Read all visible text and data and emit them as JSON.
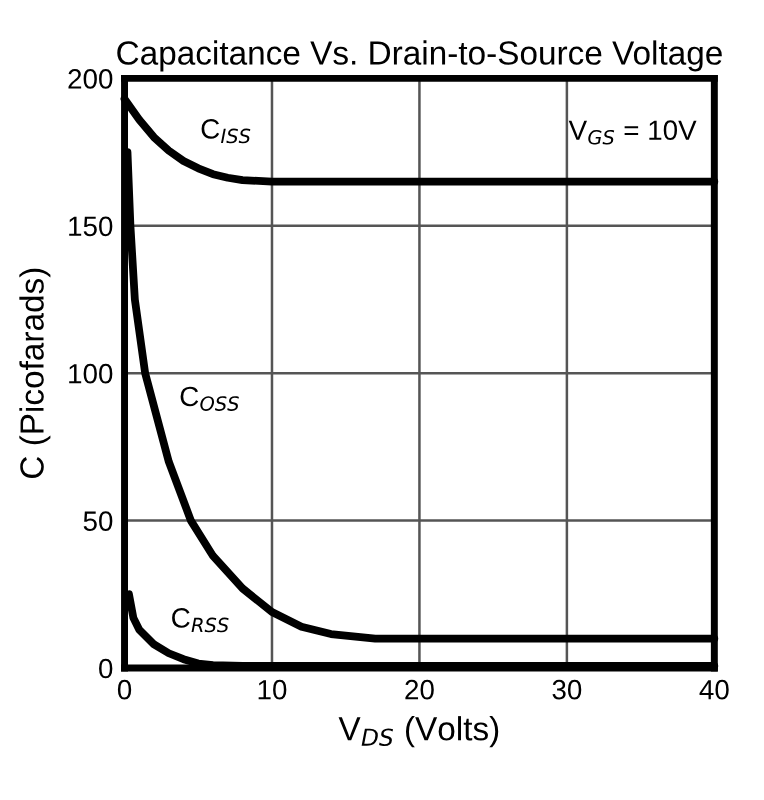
{
  "chart_data": {
    "type": "line",
    "title": "Capacitance Vs. Drain-to-Source Voltage",
    "xlabel": "V$_{DS}$ (Volts)",
    "ylabel": "C (Picofarads)",
    "annotations": [
      "V$_{GS}$ = 10V"
    ],
    "series": [
      {
        "name": "C$_{ISS}$",
        "color": "#000000",
        "x": [
          0,
          1,
          2,
          3,
          4,
          5,
          6,
          7,
          8,
          10,
          40
        ],
        "values": [
          193,
          186,
          180,
          175.5,
          172,
          169.5,
          167.5,
          166.3,
          165.5,
          165,
          165
        ]
      },
      {
        "name": "C$_{OSS}$",
        "color": "#000000",
        "x": [
          0.2,
          0.4,
          0.7,
          1.4,
          2.2,
          3,
          4.5,
          6,
          8,
          10,
          12,
          14,
          17,
          40
        ],
        "values": [
          175,
          150,
          125,
          100,
          85,
          70,
          50,
          38,
          27,
          19,
          14,
          11.5,
          10,
          10
        ]
      },
      {
        "name": "C$_{RSS}$",
        "color": "#000000",
        "x": [
          0.3,
          0.6,
          1,
          2,
          3,
          4,
          5,
          6,
          8,
          40
        ],
        "values": [
          25,
          17,
          13,
          8,
          5,
          3,
          1.5,
          1,
          0.7,
          0.7
        ]
      }
    ],
    "xlim": [
      0,
      40
    ],
    "ylim": [
      0,
      200
    ],
    "xticks": [
      0,
      10,
      20,
      30,
      40
    ],
    "yticks": [
      0,
      50,
      100,
      150,
      200
    ],
    "grid": true,
    "marker": "none",
    "line_style": "solid"
  }
}
